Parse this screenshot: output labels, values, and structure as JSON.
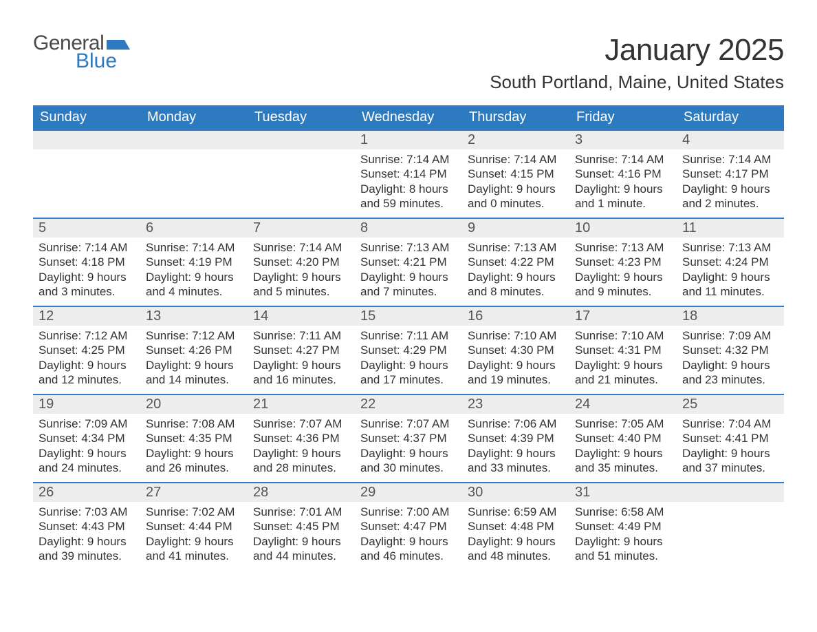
{
  "brand": {
    "text_general": "General",
    "text_blue": "Blue",
    "icon_color": "#2e7ac1"
  },
  "header": {
    "title": "January 2025",
    "location": "South Portland, Maine, United States"
  },
  "colors": {
    "header_bg": "#2e7ac1",
    "header_text": "#ffffff",
    "row_border": "#2e7ac1",
    "daynum_bg": "#ededed",
    "text": "#333333",
    "page_bg": "#ffffff"
  },
  "typography": {
    "title_fontsize": 44,
    "location_fontsize": 26,
    "daylabel_fontsize": 20,
    "body_fontsize": 17
  },
  "calendar": {
    "type": "table",
    "columns": [
      "Sunday",
      "Monday",
      "Tuesday",
      "Wednesday",
      "Thursday",
      "Friday",
      "Saturday"
    ],
    "weeks": [
      [
        null,
        null,
        null,
        {
          "n": 1,
          "sunrise": "Sunrise: 7:14 AM",
          "sunset": "Sunset: 4:14 PM",
          "day1": "Daylight: 8 hours",
          "day2": "and 59 minutes."
        },
        {
          "n": 2,
          "sunrise": "Sunrise: 7:14 AM",
          "sunset": "Sunset: 4:15 PM",
          "day1": "Daylight: 9 hours",
          "day2": "and 0 minutes."
        },
        {
          "n": 3,
          "sunrise": "Sunrise: 7:14 AM",
          "sunset": "Sunset: 4:16 PM",
          "day1": "Daylight: 9 hours",
          "day2": "and 1 minute."
        },
        {
          "n": 4,
          "sunrise": "Sunrise: 7:14 AM",
          "sunset": "Sunset: 4:17 PM",
          "day1": "Daylight: 9 hours",
          "day2": "and 2 minutes."
        }
      ],
      [
        {
          "n": 5,
          "sunrise": "Sunrise: 7:14 AM",
          "sunset": "Sunset: 4:18 PM",
          "day1": "Daylight: 9 hours",
          "day2": "and 3 minutes."
        },
        {
          "n": 6,
          "sunrise": "Sunrise: 7:14 AM",
          "sunset": "Sunset: 4:19 PM",
          "day1": "Daylight: 9 hours",
          "day2": "and 4 minutes."
        },
        {
          "n": 7,
          "sunrise": "Sunrise: 7:14 AM",
          "sunset": "Sunset: 4:20 PM",
          "day1": "Daylight: 9 hours",
          "day2": "and 5 minutes."
        },
        {
          "n": 8,
          "sunrise": "Sunrise: 7:13 AM",
          "sunset": "Sunset: 4:21 PM",
          "day1": "Daylight: 9 hours",
          "day2": "and 7 minutes."
        },
        {
          "n": 9,
          "sunrise": "Sunrise: 7:13 AM",
          "sunset": "Sunset: 4:22 PM",
          "day1": "Daylight: 9 hours",
          "day2": "and 8 minutes."
        },
        {
          "n": 10,
          "sunrise": "Sunrise: 7:13 AM",
          "sunset": "Sunset: 4:23 PM",
          "day1": "Daylight: 9 hours",
          "day2": "and 9 minutes."
        },
        {
          "n": 11,
          "sunrise": "Sunrise: 7:13 AM",
          "sunset": "Sunset: 4:24 PM",
          "day1": "Daylight: 9 hours",
          "day2": "and 11 minutes."
        }
      ],
      [
        {
          "n": 12,
          "sunrise": "Sunrise: 7:12 AM",
          "sunset": "Sunset: 4:25 PM",
          "day1": "Daylight: 9 hours",
          "day2": "and 12 minutes."
        },
        {
          "n": 13,
          "sunrise": "Sunrise: 7:12 AM",
          "sunset": "Sunset: 4:26 PM",
          "day1": "Daylight: 9 hours",
          "day2": "and 14 minutes."
        },
        {
          "n": 14,
          "sunrise": "Sunrise: 7:11 AM",
          "sunset": "Sunset: 4:27 PM",
          "day1": "Daylight: 9 hours",
          "day2": "and 16 minutes."
        },
        {
          "n": 15,
          "sunrise": "Sunrise: 7:11 AM",
          "sunset": "Sunset: 4:29 PM",
          "day1": "Daylight: 9 hours",
          "day2": "and 17 minutes."
        },
        {
          "n": 16,
          "sunrise": "Sunrise: 7:10 AM",
          "sunset": "Sunset: 4:30 PM",
          "day1": "Daylight: 9 hours",
          "day2": "and 19 minutes."
        },
        {
          "n": 17,
          "sunrise": "Sunrise: 7:10 AM",
          "sunset": "Sunset: 4:31 PM",
          "day1": "Daylight: 9 hours",
          "day2": "and 21 minutes."
        },
        {
          "n": 18,
          "sunrise": "Sunrise: 7:09 AM",
          "sunset": "Sunset: 4:32 PM",
          "day1": "Daylight: 9 hours",
          "day2": "and 23 minutes."
        }
      ],
      [
        {
          "n": 19,
          "sunrise": "Sunrise: 7:09 AM",
          "sunset": "Sunset: 4:34 PM",
          "day1": "Daylight: 9 hours",
          "day2": "and 24 minutes."
        },
        {
          "n": 20,
          "sunrise": "Sunrise: 7:08 AM",
          "sunset": "Sunset: 4:35 PM",
          "day1": "Daylight: 9 hours",
          "day2": "and 26 minutes."
        },
        {
          "n": 21,
          "sunrise": "Sunrise: 7:07 AM",
          "sunset": "Sunset: 4:36 PM",
          "day1": "Daylight: 9 hours",
          "day2": "and 28 minutes."
        },
        {
          "n": 22,
          "sunrise": "Sunrise: 7:07 AM",
          "sunset": "Sunset: 4:37 PM",
          "day1": "Daylight: 9 hours",
          "day2": "and 30 minutes."
        },
        {
          "n": 23,
          "sunrise": "Sunrise: 7:06 AM",
          "sunset": "Sunset: 4:39 PM",
          "day1": "Daylight: 9 hours",
          "day2": "and 33 minutes."
        },
        {
          "n": 24,
          "sunrise": "Sunrise: 7:05 AM",
          "sunset": "Sunset: 4:40 PM",
          "day1": "Daylight: 9 hours",
          "day2": "and 35 minutes."
        },
        {
          "n": 25,
          "sunrise": "Sunrise: 7:04 AM",
          "sunset": "Sunset: 4:41 PM",
          "day1": "Daylight: 9 hours",
          "day2": "and 37 minutes."
        }
      ],
      [
        {
          "n": 26,
          "sunrise": "Sunrise: 7:03 AM",
          "sunset": "Sunset: 4:43 PM",
          "day1": "Daylight: 9 hours",
          "day2": "and 39 minutes."
        },
        {
          "n": 27,
          "sunrise": "Sunrise: 7:02 AM",
          "sunset": "Sunset: 4:44 PM",
          "day1": "Daylight: 9 hours",
          "day2": "and 41 minutes."
        },
        {
          "n": 28,
          "sunrise": "Sunrise: 7:01 AM",
          "sunset": "Sunset: 4:45 PM",
          "day1": "Daylight: 9 hours",
          "day2": "and 44 minutes."
        },
        {
          "n": 29,
          "sunrise": "Sunrise: 7:00 AM",
          "sunset": "Sunset: 4:47 PM",
          "day1": "Daylight: 9 hours",
          "day2": "and 46 minutes."
        },
        {
          "n": 30,
          "sunrise": "Sunrise: 6:59 AM",
          "sunset": "Sunset: 4:48 PM",
          "day1": "Daylight: 9 hours",
          "day2": "and 48 minutes."
        },
        {
          "n": 31,
          "sunrise": "Sunrise: 6:58 AM",
          "sunset": "Sunset: 4:49 PM",
          "day1": "Daylight: 9 hours",
          "day2": "and 51 minutes."
        },
        null
      ]
    ]
  }
}
